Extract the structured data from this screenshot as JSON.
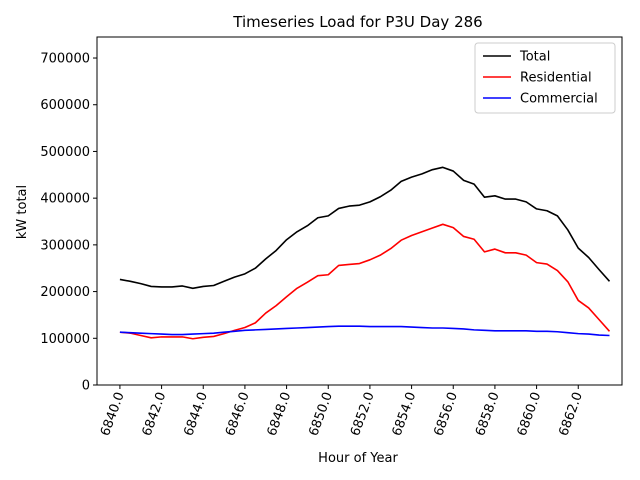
{
  "chart_data": {
    "type": "line",
    "title": "Timeseries Load for P3U   Day 286",
    "xlabel": "Hour of Year",
    "ylabel": "kW total",
    "xlim": [
      6838.9,
      6864.1
    ],
    "ylim": [
      0,
      745000
    ],
    "xticks": [
      6840,
      6842,
      6844,
      6846,
      6848,
      6850,
      6852,
      6854,
      6856,
      6858,
      6860,
      6862
    ],
    "xtick_labels": [
      "6840.0",
      "6842.0",
      "6844.0",
      "6846.0",
      "6848.0",
      "6850.0",
      "6852.0",
      "6854.0",
      "6856.0",
      "6858.0",
      "6860.0",
      "6862.0"
    ],
    "yticks": [
      0,
      100000,
      200000,
      300000,
      400000,
      500000,
      600000,
      700000
    ],
    "ytick_labels": [
      "0",
      "100000",
      "200000",
      "300000",
      "400000",
      "500000",
      "600000",
      "700000"
    ],
    "legend_position": "top-right",
    "x": [
      6840.0,
      6840.5,
      6841.0,
      6841.5,
      6842.0,
      6842.5,
      6843.0,
      6843.5,
      6844.0,
      6844.5,
      6845.0,
      6845.5,
      6846.0,
      6846.5,
      6847.0,
      6847.5,
      6848.0,
      6848.5,
      6849.0,
      6849.5,
      6850.0,
      6850.5,
      6851.0,
      6851.5,
      6852.0,
      6852.5,
      6853.0,
      6853.5,
      6854.0,
      6854.5,
      6855.0,
      6855.5,
      6856.0,
      6856.5,
      6857.0,
      6857.5,
      6858.0,
      6858.5,
      6859.0,
      6859.5,
      6860.0,
      6860.5,
      6861.0,
      6861.5,
      6862.0,
      6862.5,
      6863.0,
      6863.5
    ],
    "series": [
      {
        "name": "Total",
        "color": "#000000",
        "values": [
          226000,
          222000,
          217000,
          211000,
          210000,
          210000,
          212000,
          207000,
          211000,
          213000,
          222000,
          231000,
          238000,
          250000,
          270000,
          288000,
          311000,
          328000,
          341000,
          358000,
          362000,
          378000,
          383000,
          385000,
          392000,
          403000,
          417000,
          436000,
          445000,
          452000,
          461000,
          466000,
          458000,
          438000,
          430000,
          402000,
          405000,
          398000,
          398000,
          392000,
          377000,
          373000,
          362000,
          332000,
          293000,
          273000,
          247000,
          222000
        ]
      },
      {
        "name": "Residential",
        "color": "#ff0000",
        "values": [
          113000,
          111000,
          106000,
          101000,
          103000,
          103000,
          103000,
          99000,
          102000,
          104000,
          110000,
          117000,
          123000,
          133000,
          154000,
          170000,
          189000,
          207000,
          220000,
          234000,
          236000,
          256000,
          258000,
          260000,
          268000,
          278000,
          292000,
          310000,
          320000,
          328000,
          336000,
          344000,
          337000,
          318000,
          312000,
          285000,
          291000,
          283000,
          283000,
          278000,
          262000,
          259000,
          245000,
          221000,
          181000,
          165000,
          140000,
          115000
        ]
      },
      {
        "name": "Commercial",
        "color": "#0000ff",
        "values": [
          113000,
          112000,
          111000,
          110000,
          109000,
          108000,
          108000,
          109000,
          110000,
          111000,
          113000,
          115000,
          117000,
          118000,
          119000,
          120000,
          121000,
          122000,
          123000,
          124000,
          125000,
          126000,
          126000,
          126000,
          125000,
          125000,
          125000,
          125000,
          124000,
          123000,
          122000,
          122000,
          121000,
          120000,
          118000,
          117000,
          116000,
          116000,
          116000,
          116000,
          115000,
          115000,
          114000,
          112000,
          110000,
          109000,
          107000,
          106000
        ]
      }
    ]
  }
}
